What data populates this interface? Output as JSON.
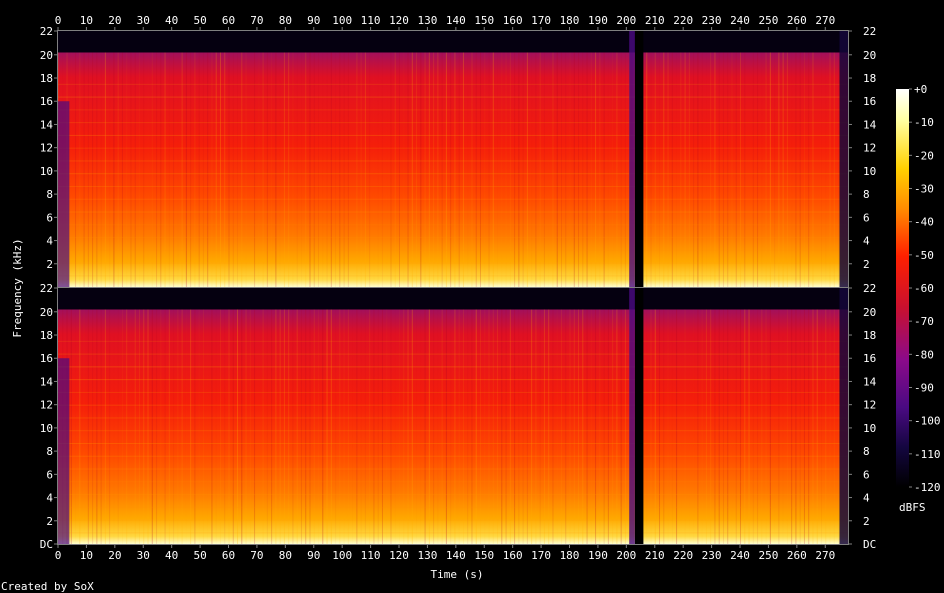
{
  "chart_data": {
    "type": "heatmap",
    "xlabel": "Time (s)",
    "ylabel": "Frequency (kHz)",
    "colorbar_label": "dBFS",
    "credit": "Created by SoX",
    "x_range": [
      0,
      278
    ],
    "y_range_khz": [
      0,
      22.05
    ],
    "x_ticks": [
      "0",
      "10",
      "20",
      "30",
      "40",
      "50",
      "60",
      "70",
      "80",
      "90",
      "100",
      "110",
      "120",
      "130",
      "140",
      "150",
      "160",
      "170",
      "180",
      "190",
      "200",
      "210",
      "220",
      "230",
      "240",
      "250",
      "260",
      "270"
    ],
    "x_tick_values": [
      0,
      10,
      20,
      30,
      40,
      50,
      60,
      70,
      80,
      90,
      100,
      110,
      120,
      130,
      140,
      150,
      160,
      170,
      180,
      190,
      200,
      210,
      220,
      230,
      240,
      250,
      260,
      270
    ],
    "y_ticks_top": [
      "22",
      "20",
      "18",
      "16",
      "14",
      "12",
      "10",
      "8",
      "6",
      "4",
      "2"
    ],
    "y_ticks_bottom": [
      "22",
      "20",
      "18",
      "16",
      "14",
      "12",
      "10",
      "8",
      "6",
      "4",
      "2",
      "DC"
    ],
    "y_tick_values": [
      22,
      20,
      18,
      16,
      14,
      12,
      10,
      8,
      6,
      4,
      2,
      0
    ],
    "colorbar_ticks": [
      "+0",
      "-10",
      "-20",
      "-30",
      "-40",
      "-50",
      "-60",
      "-70",
      "-80",
      "-90",
      "-100",
      "-110",
      "-120"
    ],
    "colorbar_values": [
      0,
      -10,
      -20,
      -30,
      -40,
      -50,
      -60,
      -70,
      -80,
      -90,
      -100,
      -110,
      -120
    ],
    "channels": 2,
    "lowpass_cutoff_khz": 20.2,
    "silence_segments_s": [
      [
        203,
        206
      ]
    ],
    "colors": {
      "background": "#000000",
      "axis": "#808080",
      "text": "#ffffff",
      "colormap": [
        "#000000",
        "#1a0548",
        "#4a0a82",
        "#8b0a8a",
        "#c8102f",
        "#ff2a00",
        "#ff8000",
        "#ffc800",
        "#ffffc8",
        "#ffffff"
      ]
    }
  }
}
